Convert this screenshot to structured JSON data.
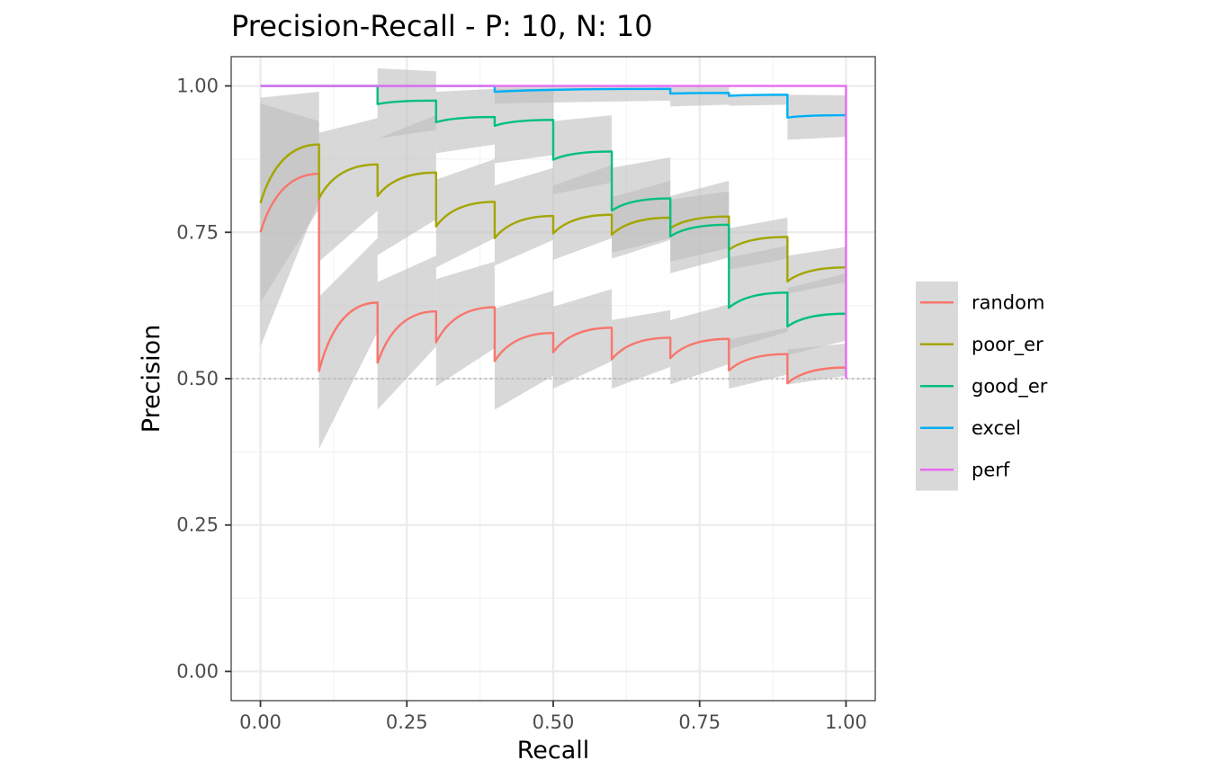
{
  "chart_data": {
    "type": "line",
    "title": "Precision-Recall - P: 10, N: 10",
    "xlabel": "Recall",
    "ylabel": "Precision",
    "xlim": [
      -0.05,
      1.05
    ],
    "ylim": [
      -0.05,
      1.05
    ],
    "x_ticks": [
      0,
      0.25,
      0.5,
      0.75,
      1
    ],
    "x_tick_labels": [
      "0.00",
      "0.25",
      "0.50",
      "0.75",
      "1.00"
    ],
    "y_ticks": [
      0,
      0.25,
      0.5,
      0.75,
      1
    ],
    "y_tick_labels": [
      "0.00",
      "0.25",
      "0.50",
      "0.75",
      "1.00"
    ],
    "grid": true,
    "legend_position": "right",
    "baseline": 0.5,
    "colors": {
      "band": "#bebebe",
      "baseline": "#bdbdbd",
      "grid_major": "#ebebeb",
      "grid_minor": "#f4f4f4",
      "panel_border": "#333333",
      "legend_key_bg": "#d9d9d9"
    },
    "series": [
      {
        "name": "random",
        "color": "#F8766D",
        "segments": [
          [
            0.0,
            0.75,
            0.1,
            0.85
          ],
          [
            0.1,
            0.513,
            0.2,
            0.63
          ],
          [
            0.2,
            0.527,
            0.3,
            0.615
          ],
          [
            0.3,
            0.562,
            0.4,
            0.622
          ],
          [
            0.4,
            0.53,
            0.5,
            0.578
          ],
          [
            0.5,
            0.545,
            0.6,
            0.587
          ],
          [
            0.6,
            0.533,
            0.7,
            0.57
          ],
          [
            0.7,
            0.535,
            0.8,
            0.568
          ],
          [
            0.8,
            0.514,
            0.9,
            0.542
          ],
          [
            0.9,
            0.492,
            1.0,
            0.519
          ]
        ],
        "band": [
          [
            0.0,
            0.555,
            0.1,
            0.805,
            0.1,
            0.99,
            0.0,
            0.98
          ],
          [
            0.1,
            0.38,
            0.2,
            0.58,
            0.2,
            0.74,
            0.1,
            0.64
          ],
          [
            0.2,
            0.447,
            0.3,
            0.555,
            0.3,
            0.71,
            0.2,
            0.665
          ],
          [
            0.3,
            0.487,
            0.4,
            0.552,
            0.4,
            0.7,
            0.3,
            0.67
          ],
          [
            0.4,
            0.447,
            0.5,
            0.505,
            0.5,
            0.65,
            0.4,
            0.62
          ],
          [
            0.5,
            0.483,
            0.6,
            0.53,
            0.6,
            0.653,
            0.5,
            0.623
          ],
          [
            0.6,
            0.483,
            0.7,
            0.52,
            0.7,
            0.617,
            0.6,
            0.6
          ],
          [
            0.7,
            0.49,
            0.8,
            0.525,
            0.8,
            0.627,
            0.7,
            0.6
          ],
          [
            0.8,
            0.483,
            0.9,
            0.507,
            0.9,
            0.587,
            0.8,
            0.567
          ],
          [
            0.9,
            0.49,
            1.0,
            0.505,
            1.0,
            0.56,
            0.9,
            0.55
          ]
        ]
      },
      {
        "name": "poor_er",
        "color": "#A3A500",
        "segments": [
          [
            0.0,
            0.8,
            0.1,
            0.9
          ],
          [
            0.1,
            0.808,
            0.2,
            0.866
          ],
          [
            0.2,
            0.812,
            0.3,
            0.852
          ],
          [
            0.3,
            0.76,
            0.4,
            0.802
          ],
          [
            0.4,
            0.74,
            0.5,
            0.778
          ],
          [
            0.5,
            0.748,
            0.6,
            0.78
          ],
          [
            0.6,
            0.746,
            0.7,
            0.775
          ],
          [
            0.7,
            0.757,
            0.8,
            0.777
          ],
          [
            0.8,
            0.72,
            0.9,
            0.742
          ],
          [
            0.9,
            0.666,
            1.0,
            0.69
          ]
        ],
        "band": [
          [
            0.0,
            0.63,
            0.1,
            0.79,
            0.1,
            0.94,
            0.0,
            0.97
          ],
          [
            0.1,
            0.7,
            0.2,
            0.787,
            0.2,
            0.945,
            0.1,
            0.92
          ],
          [
            0.2,
            0.711,
            0.3,
            0.772,
            0.3,
            0.95,
            0.2,
            0.91
          ],
          [
            0.3,
            0.69,
            0.4,
            0.74,
            0.4,
            0.875,
            0.3,
            0.84
          ],
          [
            0.4,
            0.693,
            0.5,
            0.737,
            0.5,
            0.86,
            0.4,
            0.83
          ],
          [
            0.5,
            0.703,
            0.6,
            0.74,
            0.6,
            0.865,
            0.5,
            0.83
          ],
          [
            0.6,
            0.705,
            0.7,
            0.737,
            0.7,
            0.838,
            0.6,
            0.81
          ],
          [
            0.7,
            0.7,
            0.8,
            0.723,
            0.8,
            0.838,
            0.7,
            0.812
          ],
          [
            0.8,
            0.686,
            0.9,
            0.705,
            0.9,
            0.775,
            0.8,
            0.757
          ],
          [
            0.9,
            0.645,
            1.0,
            0.665,
            1.0,
            0.725,
            0.9,
            0.71
          ]
        ]
      },
      {
        "name": "good_er",
        "color": "#00BF7D",
        "segments": [
          [
            0.0,
            1.0,
            0.2,
            1.0
          ],
          [
            0.2,
            0.969,
            0.3,
            0.975
          ],
          [
            0.3,
            0.938,
            0.4,
            0.947
          ],
          [
            0.4,
            0.932,
            0.5,
            0.942
          ],
          [
            0.5,
            0.874,
            0.6,
            0.888
          ],
          [
            0.6,
            0.787,
            0.7,
            0.808
          ],
          [
            0.7,
            0.743,
            0.8,
            0.763
          ],
          [
            0.8,
            0.621,
            0.9,
            0.647
          ],
          [
            0.9,
            0.589,
            1.0,
            0.611
          ]
        ],
        "band": [
          [
            0.2,
            0.91,
            0.3,
            0.925,
            0.3,
            1.025,
            0.2,
            1.03
          ],
          [
            0.3,
            0.885,
            0.4,
            0.9,
            0.4,
            0.995,
            0.3,
            0.99
          ],
          [
            0.4,
            0.868,
            0.5,
            0.882,
            0.5,
            0.995,
            0.4,
            0.995
          ],
          [
            0.5,
            0.815,
            0.6,
            0.835,
            0.6,
            0.95,
            0.5,
            0.94
          ],
          [
            0.6,
            0.715,
            0.7,
            0.74,
            0.7,
            0.878,
            0.6,
            0.86
          ],
          [
            0.7,
            0.68,
            0.8,
            0.707,
            0.8,
            0.82,
            0.7,
            0.806
          ],
          [
            0.8,
            0.55,
            0.9,
            0.58,
            0.9,
            0.727,
            0.8,
            0.707
          ],
          [
            0.9,
            0.54,
            1.0,
            0.565,
            1.0,
            0.68,
            0.9,
            0.655
          ]
        ]
      },
      {
        "name": "excel",
        "color": "#00B0F6",
        "segments": [
          [
            0.0,
            1.0,
            0.4,
            1.0
          ],
          [
            0.4,
            0.99,
            0.7,
            0.995
          ],
          [
            0.7,
            0.987,
            0.8,
            0.988
          ],
          [
            0.8,
            0.983,
            0.9,
            0.985
          ],
          [
            0.9,
            0.946,
            1.0,
            0.95
          ]
        ],
        "band": [
          [
            0.4,
            0.97,
            0.7,
            0.975,
            0.7,
            1.0,
            0.4,
            1.0
          ],
          [
            0.7,
            0.965,
            0.8,
            0.968,
            0.8,
            0.998,
            0.7,
            0.998
          ],
          [
            0.8,
            0.966,
            0.9,
            0.968,
            0.9,
            0.986,
            0.8,
            0.986
          ],
          [
            0.9,
            0.908,
            1.0,
            0.913,
            1.0,
            0.984,
            0.9,
            0.985
          ]
        ]
      },
      {
        "name": "perf",
        "color": "#E76BF3",
        "segments": [
          [
            0.0,
            1.0,
            1.0,
            1.0
          ],
          [
            1.0,
            1.0,
            1.0,
            0.5
          ]
        ],
        "band": []
      }
    ]
  }
}
